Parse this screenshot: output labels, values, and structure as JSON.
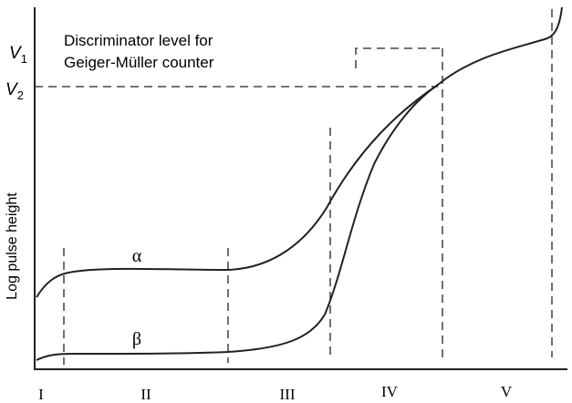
{
  "markers": [
    {
      "symbol": "V",
      "subscript": "1"
    },
    {
      "symbol": "V",
      "subscript": "2"
    }
  ],
  "annotation": [
    "Discriminator level for",
    "Geiger-Müller counter"
  ],
  "y_axis_label": "Log pulse height",
  "curves": [
    "α",
    "β"
  ],
  "regions": [
    "I",
    "II",
    "III",
    "IV",
    "V"
  ]
}
